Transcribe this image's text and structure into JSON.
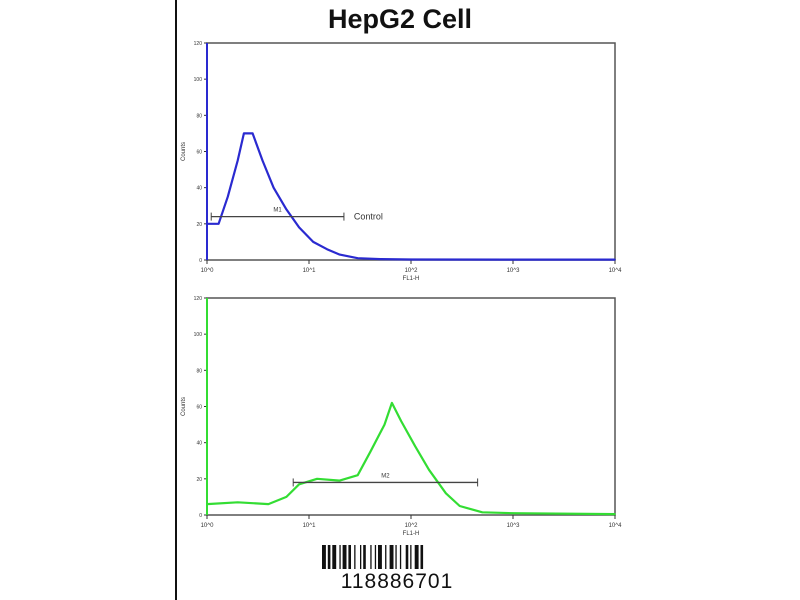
{
  "title": "HepG2 Cell",
  "barcode_number": "118886701",
  "chart_data": [
    {
      "type": "line",
      "title": "",
      "xlabel": "FL1-H",
      "ylabel": "Counts",
      "x_scale": "log",
      "xlim": [
        1,
        10000
      ],
      "ylim": [
        0,
        120
      ],
      "x_ticks": [
        "10^0",
        "10^1",
        "10^2",
        "10^3",
        "10^4"
      ],
      "y_ticks": [
        "0",
        "20",
        "40",
        "60",
        "80",
        "100",
        "120"
      ],
      "grid": false,
      "color": "#2a2ad0",
      "marker": {
        "label": "M1",
        "from": 1.1,
        "to": 22,
        "level": 24
      },
      "annotation": "Control",
      "series": [
        {
          "x": [
            1,
            1.3,
            1.6,
            2,
            2.3,
            2.8,
            3.5,
            4.5,
            6,
            8,
            11,
            15,
            20,
            30,
            50,
            100,
            1000,
            10000
          ],
          "values": [
            20,
            20,
            35,
            55,
            70,
            70,
            55,
            40,
            28,
            18,
            10,
            6,
            3,
            1,
            0.5,
            0.3,
            0.2,
            0.2
          ]
        }
      ]
    },
    {
      "type": "line",
      "title": "",
      "xlabel": "FL1-H",
      "ylabel": "Counts",
      "x_scale": "log",
      "xlim": [
        1,
        10000
      ],
      "ylim": [
        0,
        120
      ],
      "x_ticks": [
        "10^0",
        "10^1",
        "10^2",
        "10^3",
        "10^4"
      ],
      "y_ticks": [
        "0",
        "20",
        "40",
        "60",
        "80",
        "100",
        "120"
      ],
      "grid": false,
      "color": "#33dd33",
      "marker": {
        "label": "M2",
        "from": 7,
        "to": 450,
        "level": 18
      },
      "series": [
        {
          "x": [
            1,
            2,
            4,
            6,
            8,
            12,
            20,
            30,
            40,
            55,
            65,
            80,
            110,
            150,
            220,
            300,
            500,
            1000,
            10000
          ],
          "values": [
            6,
            7,
            6,
            10,
            17,
            20,
            19,
            22,
            35,
            50,
            62,
            52,
            38,
            25,
            12,
            5,
            1.5,
            1,
            0.5
          ]
        }
      ]
    }
  ]
}
